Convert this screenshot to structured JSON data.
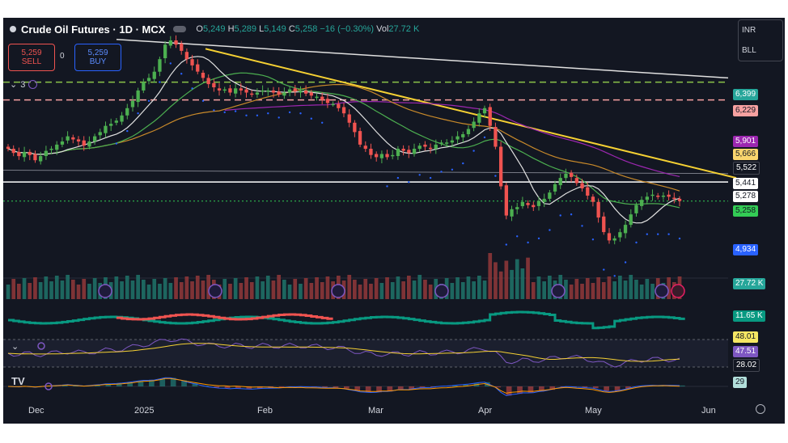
{
  "header": {
    "title": "Crude Oil Futures · 1D · MCX",
    "ohlc": [
      {
        "k": "O",
        "v": "5,249"
      },
      {
        "k": "H",
        "v": "5,289"
      },
      {
        "k": "L",
        "v": "5,149"
      },
      {
        "k": "C",
        "v": "5,258"
      }
    ],
    "change": "−16 (−0.30%)",
    "vol_label": "Vol",
    "vol_value": "27.72 K"
  },
  "trade": {
    "sell_price": "5,259",
    "sell_label": "SELL",
    "spread": "0",
    "buy_price": "5,259",
    "buy_label": "BUY"
  },
  "currency_panel": {
    "currency": "INR",
    "unit": "BLL"
  },
  "indicators": {
    "collapsed_count": "3"
  },
  "price_scale_labels": [
    {
      "text": "6,399",
      "bg": "#26a69a",
      "fg": "light"
    },
    {
      "text": "6,229",
      "bg": "#f7a1a1",
      "fg": "dark"
    },
    {
      "text": "5,901",
      "bg": "#9c27b0",
      "fg": "light"
    },
    {
      "text": "5,666",
      "bg": "#f9d56e",
      "fg": "dark"
    },
    {
      "text": "5,522",
      "bg": "#131722",
      "fg": "light"
    },
    {
      "text": "5,441",
      "bg": "#ffffff",
      "fg": "dark"
    },
    {
      "text": "5,278",
      "bg": "#ffffff",
      "fg": "dark"
    },
    {
      "text": "5,258",
      "bg": "#33cc55",
      "fg": "dark"
    },
    {
      "text": "4,934",
      "bg": "#2962ff",
      "fg": "light"
    },
    {
      "text": "27.72 K",
      "bg": "#26a69a",
      "fg": "light"
    },
    {
      "text": "11.65 K",
      "bg": "#089981",
      "fg": "light"
    },
    {
      "text": "48.01",
      "bg": "#f5e663",
      "fg": "dark"
    },
    {
      "text": "47.51",
      "bg": "#7e57c2",
      "fg": "light"
    },
    {
      "text": "28.02",
      "bg": "#131722",
      "fg": "light"
    },
    {
      "text": "29",
      "bg": "#b2dfdb",
      "fg": "dark"
    }
  ],
  "x_axis_labels": [
    "Dec",
    "2025",
    "Feb",
    "Mar",
    "Apr",
    "May",
    "Jun"
  ],
  "colors": {
    "up": "#26a69a",
    "down": "#ef5350",
    "up_bright": "#4caf50",
    "trendline": "#f5d033",
    "resistance": "#ffffff",
    "ma_white": "#e0e0e0",
    "ma_orange": "#c98a2a",
    "ma_purple": "#9c27b0",
    "ma_green": "#4caf50",
    "dots_blue": "#2962ff"
  },
  "chart_data": {
    "type": "candlestick",
    "title": "Crude Oil Futures · 1D · MCX",
    "x_ticks": [
      "Dec",
      "2025",
      "Feb",
      "Mar",
      "Apr",
      "May",
      "Jun"
    ],
    "y_axis_labels": [
      "6,399",
      "6,229",
      "5,901",
      "5,666",
      "5,522",
      "5,441",
      "5,278",
      "5,258",
      "4,934"
    ],
    "y_range": [
      4550,
      6800
    ],
    "last": {
      "open": 5249,
      "high": 5289,
      "low": 5149,
      "close": 5258,
      "change": -16,
      "change_pct": -0.3,
      "volume": "27.72 K"
    },
    "levels": {
      "dashed_green": 6399,
      "dashed_red": 6229,
      "support_white": 5441,
      "ma_purple": 5901,
      "ma_orange": 5666,
      "ma_gray": 5522,
      "ma_white": 5278,
      "blue_dots": 4934
    },
    "close_series": [
      5760,
      5720,
      5690,
      5730,
      5700,
      5650,
      5690,
      5740,
      5760,
      5800,
      5830,
      5880,
      5850,
      5830,
      5790,
      5830,
      5880,
      5920,
      5980,
      6000,
      6030,
      6080,
      6150,
      6220,
      6320,
      6400,
      6440,
      6500,
      6620,
      6760,
      6800,
      6760,
      6700,
      6620,
      6560,
      6500,
      6440,
      6380,
      6350,
      6320,
      6330,
      6300,
      6340,
      6320,
      6300,
      6280,
      6300,
      6320,
      6320,
      6300,
      6280,
      6300,
      6330,
      6310,
      6320,
      6290,
      6270,
      6260,
      6230,
      6200,
      6190,
      6150,
      6100,
      6010,
      5920,
      5800,
      5760,
      5700,
      5680,
      5710,
      5680,
      5700,
      5760,
      5740,
      5720,
      5760,
      5790,
      5780,
      5760,
      5800,
      5820,
      5820,
      5840,
      5880,
      5900,
      5950,
      6020,
      6100,
      6150,
      5980,
      5780,
      5400,
      5120,
      5180,
      5200,
      5250,
      5220,
      5200,
      5260,
      5280,
      5340,
      5420,
      5480,
      5520,
      5490,
      5430,
      5380,
      5310,
      5250,
      5100,
      4960,
      4880,
      4900,
      4960,
      5030,
      5130,
      5220,
      5270,
      5300,
      5320,
      5300,
      5310,
      5300,
      5280,
      5258
    ],
    "volume_overlay": "Volume (27.72 K)",
    "oscillators": [
      {
        "name": "histogram",
        "value": "11.65 K"
      },
      {
        "name": "rsi",
        "values": [
          "48.01",
          "47.51",
          "28.02"
        ]
      },
      {
        "name": "macd",
        "value": "29"
      }
    ]
  }
}
